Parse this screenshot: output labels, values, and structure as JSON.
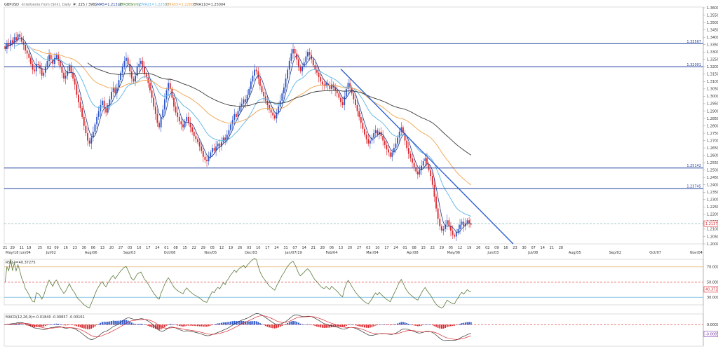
{
  "header": {
    "symbol": "GBPUSD",
    "subtitle": "-IntelGenie from (Shil), Daily",
    "price": "#: 225 / 396,",
    "sma5": "SMA5=1.21322",
    "sma": "ATR36Shrtly",
    "ema21": "EMA21=1.22582",
    "ema55": "EMA55=1.22800",
    "ema110": "EMA110=1.25004"
  },
  "colors": {
    "bull": "#2b55c8",
    "bear": "#d9282e",
    "sma5": "#1f3a8a",
    "ema21": "#5ab4e6",
    "ema55": "#f0a24a",
    "ema110": "#3a3a3a",
    "levels": "#1e3f9e",
    "trend": "#2f5fd0",
    "rsi": "#5a7a3a",
    "macd_pos": "#2b55c8",
    "macd_neg": "#d9282e"
  },
  "chart_data": [
    {
      "type": "candlestick",
      "title": "GBPUSD Daily",
      "ylim": [
        1.2,
        1.3605
      ],
      "y_ticks": [
        1.36,
        1.355,
        1.35,
        1.345,
        1.34,
        1.335,
        1.33,
        1.325,
        1.32,
        1.315,
        1.31,
        1.305,
        1.3,
        1.295,
        1.29,
        1.285,
        1.28,
        1.275,
        1.27,
        1.265,
        1.26,
        1.255,
        1.25,
        1.245,
        1.24,
        1.235,
        1.23,
        1.225,
        1.22,
        1.215,
        1.21,
        1.205,
        1.2
      ],
      "y_tick_labels": [
        "1.36000",
        "1.35500",
        "1.35000",
        "1.34500",
        "1.34000",
        "1.33500",
        "1.33000",
        "1.32500",
        "1.32000",
        "1.31500",
        "1.31000",
        "1.30500",
        "1.30000",
        "1.29500",
        "1.29000",
        "1.28500",
        "1.28000",
        "1.27500",
        "1.27000",
        "1.26500",
        "1.26000",
        "1.25500",
        "1.25000",
        "1.24500",
        "1.24000",
        "1.23500",
        "1.23000",
        "1.22500",
        "1.22000",
        "1.21500",
        "1.21000",
        "1.20500",
        "1.20000"
      ],
      "horizontal_levels": [
        {
          "value": 1.33567,
          "label": "1.33567"
        },
        {
          "value": 1.32001,
          "label": "1.32001"
        },
        {
          "value": 1.25142,
          "label": "1.25142"
        },
        {
          "value": 1.23745,
          "label": "1.23745"
        }
      ],
      "current_price": {
        "value": 1.21372,
        "label": "1.21372"
      },
      "trendline": {
        "start": {
          "index": 183,
          "value": 1.3185
        },
        "end": {
          "index": 277,
          "value": 1.2
        }
      },
      "close": [
        1.332,
        1.336,
        1.334,
        1.338,
        1.336,
        1.34,
        1.338,
        1.342,
        1.34,
        1.337,
        1.335,
        1.331,
        1.329,
        1.326,
        1.322,
        1.318,
        1.317,
        1.322,
        1.321,
        1.319,
        1.314,
        1.316,
        1.32,
        1.324,
        1.328,
        1.325,
        1.322,
        1.326,
        1.328,
        1.324,
        1.32,
        1.316,
        1.312,
        1.314,
        1.317,
        1.321,
        1.316,
        1.312,
        1.308,
        1.301,
        1.296,
        1.292,
        1.286,
        1.28,
        1.275,
        1.27,
        1.268,
        1.272,
        1.276,
        1.281,
        1.286,
        1.29,
        1.294,
        1.297,
        1.292,
        1.289,
        1.294,
        1.298,
        1.303,
        1.306,
        1.302,
        1.306,
        1.311,
        1.316,
        1.32,
        1.324,
        1.326,
        1.322,
        1.317,
        1.312,
        1.31,
        1.314,
        1.32,
        1.322,
        1.324,
        1.32,
        1.315,
        1.313,
        1.309,
        1.304,
        1.299,
        1.293,
        1.288,
        1.282,
        1.279,
        1.286,
        1.291,
        1.298,
        1.304,
        1.309,
        1.305,
        1.299,
        1.293,
        1.289,
        1.286,
        1.283,
        1.281,
        1.279,
        1.283,
        1.286,
        1.282,
        1.279,
        1.276,
        1.273,
        1.271,
        1.269,
        1.266,
        1.263,
        1.259,
        1.257,
        1.256,
        1.259,
        1.262,
        1.265,
        1.263,
        1.266,
        1.268,
        1.266,
        1.269,
        1.272,
        1.27,
        1.274,
        1.277,
        1.281,
        1.284,
        1.288,
        1.286,
        1.29,
        1.293,
        1.295,
        1.298,
        1.296,
        1.301,
        1.305,
        1.31,
        1.314,
        1.318,
        1.317,
        1.312,
        1.307,
        1.303,
        1.3,
        1.297,
        1.294,
        1.291,
        1.289,
        1.287,
        1.285,
        1.289,
        1.293,
        1.297,
        1.302,
        1.306,
        1.312,
        1.318,
        1.324,
        1.329,
        1.332,
        1.329,
        1.325,
        1.32,
        1.317,
        1.32,
        1.323,
        1.327,
        1.33,
        1.328,
        1.325,
        1.321,
        1.318,
        1.316,
        1.313,
        1.31,
        1.308,
        1.307,
        1.309,
        1.307,
        1.305,
        1.308,
        1.306,
        1.304,
        1.302,
        1.299,
        1.296,
        1.294,
        1.3,
        1.305,
        1.309,
        1.306,
        1.302,
        1.298,
        1.294,
        1.29,
        1.286,
        1.282,
        1.278,
        1.274,
        1.271,
        1.268,
        1.27,
        1.272,
        1.275,
        1.277,
        1.274,
        1.276,
        1.273,
        1.27,
        1.267,
        1.264,
        1.262,
        1.259,
        1.262,
        1.265,
        1.268,
        1.272,
        1.276,
        1.279,
        1.275,
        1.27,
        1.265,
        1.261,
        1.258,
        1.255,
        1.252,
        1.249,
        1.247,
        1.25,
        1.253,
        1.256,
        1.258,
        1.254,
        1.25,
        1.246,
        1.24,
        1.232,
        1.224,
        1.217,
        1.212,
        1.209,
        1.21,
        1.213,
        1.216,
        1.212,
        1.209,
        1.206,
        1.205,
        1.208,
        1.21,
        1.213,
        1.215,
        1.212,
        1.214,
        1.216,
        1.214,
        1.213
      ]
    },
    {
      "type": "line",
      "title": "RSI",
      "series": [
        {
          "name": "RSI14=40.37275"
        }
      ],
      "ylim": [
        20,
        80
      ],
      "levels": [
        {
          "value": 70,
          "label": "70.00000"
        },
        {
          "value": 50,
          "label": "50.00000"
        },
        {
          "value": 30,
          "label": "30.00000"
        }
      ],
      "current": {
        "value": 40.37275,
        "label": "40.37275"
      }
    },
    {
      "type": "bar",
      "title": "MACD(12,26,9)",
      "series": [
        {
          "name": "MACD(12,26,9)=-0.01840"
        },
        {
          "name": "-0.00857"
        },
        {
          "name": "-0.00161"
        }
      ],
      "ylim": [
        -0.02,
        0.01
      ],
      "y_ticks": [
        0.0,
        -0.01
      ],
      "y_tick_labels": [
        "0.00000",
        "-0.01000"
      ],
      "current": {
        "value": -0.00857,
        "label": "-0.00857"
      }
    }
  ],
  "x_axis": {
    "labels": [
      {
        "i": 0,
        "t": "21"
      },
      {
        "i": 4,
        "t": "29"
      },
      {
        "i": 9,
        "t": "11"
      },
      {
        "i": 13,
        "t": "19"
      },
      {
        "i": 19,
        "t": "25"
      },
      {
        "i": 24,
        "t": "02"
      },
      {
        "i": 28,
        "t": "09"
      },
      {
        "i": 33,
        "t": "16"
      },
      {
        "i": 38,
        "t": "23"
      },
      {
        "i": 43,
        "t": "30"
      },
      {
        "i": 48,
        "t": "06"
      },
      {
        "i": 53,
        "t": "13"
      },
      {
        "i": 58,
        "t": "20"
      },
      {
        "i": 63,
        "t": "27"
      },
      {
        "i": 68,
        "t": "03"
      },
      {
        "i": 73,
        "t": "10"
      },
      {
        "i": 78,
        "t": "17"
      },
      {
        "i": 83,
        "t": "24"
      },
      {
        "i": 88,
        "t": "01"
      },
      {
        "i": 93,
        "t": "08"
      },
      {
        "i": 98,
        "t": "15"
      },
      {
        "i": 103,
        "t": "22"
      },
      {
        "i": 108,
        "t": "29"
      },
      {
        "i": 113,
        "t": "05"
      },
      {
        "i": 118,
        "t": "12"
      },
      {
        "i": 123,
        "t": "19"
      },
      {
        "i": 128,
        "t": "26"
      },
      {
        "i": 133,
        "t": "03"
      },
      {
        "i": 138,
        "t": "10"
      },
      {
        "i": 143,
        "t": "17"
      },
      {
        "i": 148,
        "t": "24"
      },
      {
        "i": 153,
        "t": "31"
      },
      {
        "i": 158,
        "t": "07"
      },
      {
        "i": 163,
        "t": "14"
      },
      {
        "i": 168,
        "t": "21"
      },
      {
        "i": 173,
        "t": "28"
      },
      {
        "i": 178,
        "t": "06"
      },
      {
        "i": 183,
        "t": "13"
      },
      {
        "i": 188,
        "t": "20"
      },
      {
        "i": 193,
        "t": "27"
      },
      {
        "i": 198,
        "t": "03"
      },
      {
        "i": 203,
        "t": "10"
      },
      {
        "i": 208,
        "t": "17"
      },
      {
        "i": 213,
        "t": "24"
      },
      {
        "i": 218,
        "t": "01"
      },
      {
        "i": 223,
        "t": "08"
      },
      {
        "i": 228,
        "t": "15"
      },
      {
        "i": 233,
        "t": "22"
      },
      {
        "i": 238,
        "t": "29"
      },
      {
        "i": 243,
        "t": "05"
      },
      {
        "i": 248,
        "t": "12"
      },
      {
        "i": 253,
        "t": "19"
      },
      {
        "i": 258,
        "t": "26"
      },
      {
        "i": 263,
        "t": "02"
      },
      {
        "i": 268,
        "t": "09"
      },
      {
        "i": 273,
        "t": "16"
      },
      {
        "i": 278,
        "t": "23"
      },
      {
        "i": 283,
        "t": "30"
      },
      {
        "i": 288,
        "t": "07"
      },
      {
        "i": 293,
        "t": "14"
      },
      {
        "i": 298,
        "t": "21"
      },
      {
        "i": 303,
        "t": "28"
      }
    ],
    "month_labels": [
      {
        "i": 0,
        "t": "May/18 Jun/04"
      },
      {
        "i": 22,
        "t": "Jul/02"
      },
      {
        "i": 43,
        "t": "Aug/06"
      },
      {
        "i": 64,
        "t": "Sep/03"
      },
      {
        "i": 86,
        "t": "Oct/08"
      },
      {
        "i": 108,
        "t": "Nov/05"
      },
      {
        "i": 130,
        "t": "Dec/03"
      },
      {
        "i": 152,
        "t": "Jan/07/19"
      },
      {
        "i": 174,
        "t": "Feb/04"
      },
      {
        "i": 196,
        "t": "Mar/04"
      },
      {
        "i": 218,
        "t": "Apr/08"
      },
      {
        "i": 240,
        "t": "May/06"
      },
      {
        "i": 262,
        "t": "Jun/03"
      },
      {
        "i": 284,
        "t": "Jul/08"
      },
      {
        "i": 306,
        "t": "Aug/05"
      },
      {
        "i": 328,
        "t": "Sep/02"
      },
      {
        "i": 350,
        "t": "Oct/07"
      },
      {
        "i": 372,
        "t": "Nov/04"
      }
    ]
  }
}
